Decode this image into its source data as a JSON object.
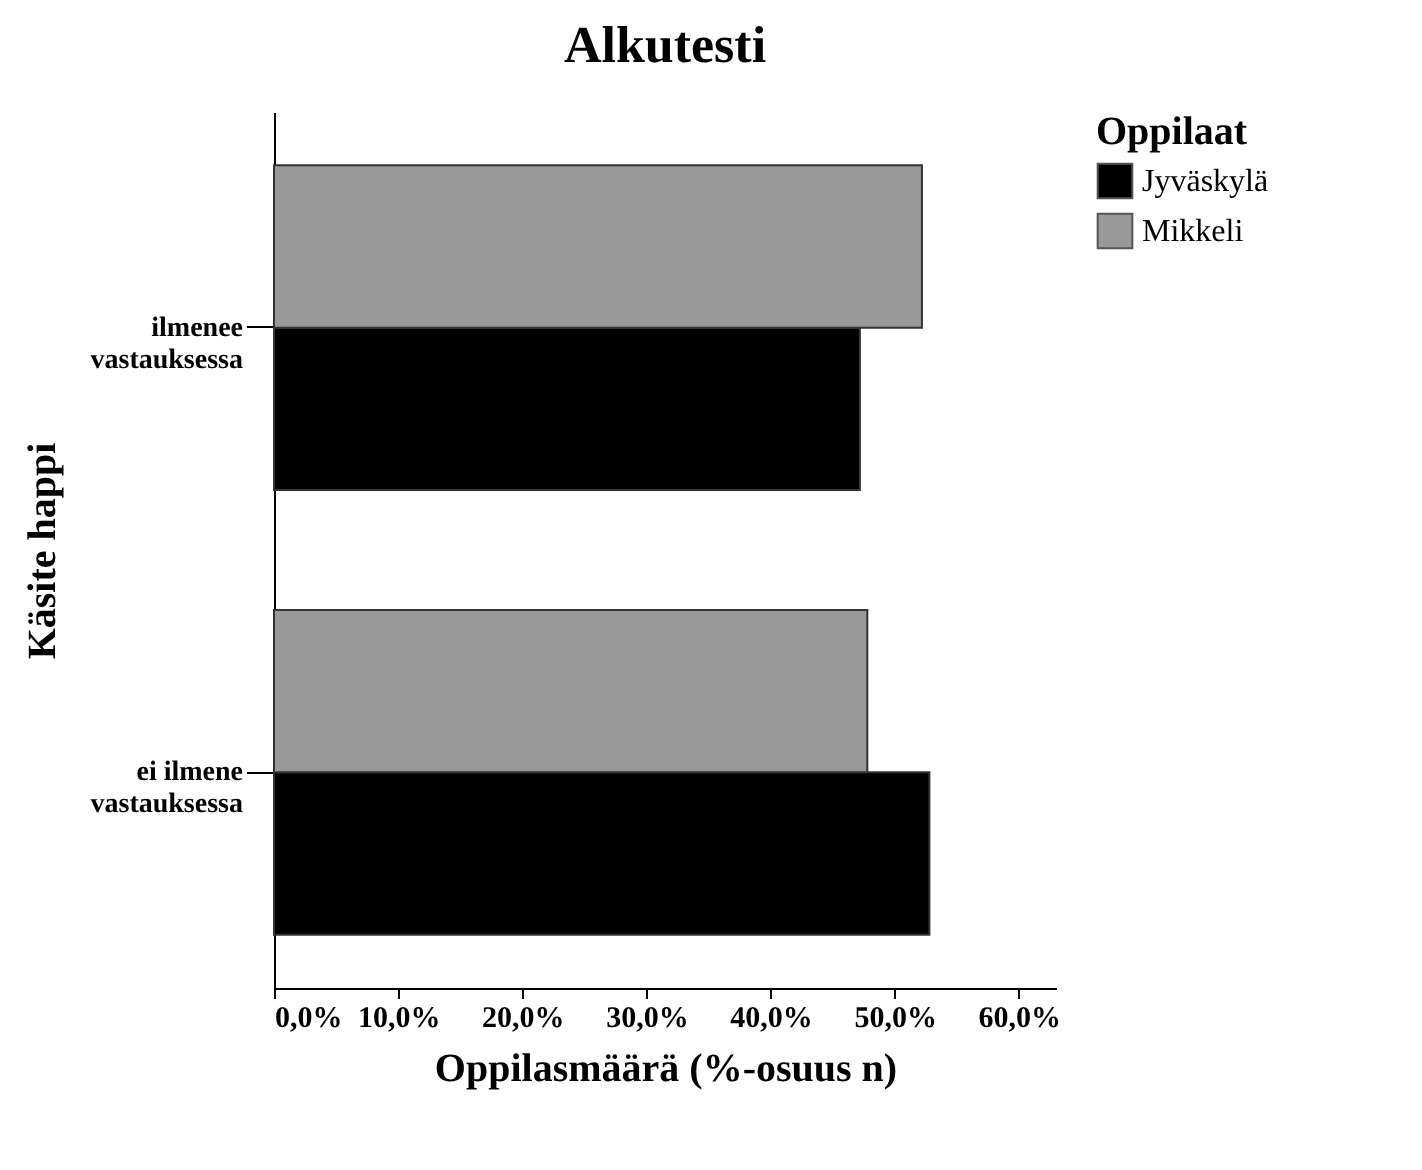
{
  "chart_data": {
    "type": "bar",
    "orientation": "horizontal",
    "title": "Alkutesti",
    "xlabel": "Oppilasmäärä (%-osuus n)",
    "ylabel": "Käsite happi",
    "legend_title": "Oppilaat",
    "legend": "top right",
    "grid": false,
    "categories": [
      "ilmenee vastauksessa",
      "ei ilmene vastauksessa"
    ],
    "series": [
      {
        "name": "Jyväskylä",
        "color": "#000000",
        "values": [
          47.2,
          52.8
        ]
      },
      {
        "name": "Mikkeli",
        "color": "#999999",
        "values": [
          52.2,
          47.8
        ]
      }
    ],
    "xlim": [
      0,
      63
    ],
    "xticks": [
      {
        "value": 0,
        "label": "0,0%"
      },
      {
        "value": 10,
        "label": "10,0%"
      },
      {
        "value": 20,
        "label": "20,0%"
      },
      {
        "value": 30,
        "label": "30,0%"
      },
      {
        "value": 40,
        "label": "40,0%"
      },
      {
        "value": 50,
        "label": "50,0%"
      },
      {
        "value": 60,
        "label": "60,0%"
      }
    ]
  }
}
